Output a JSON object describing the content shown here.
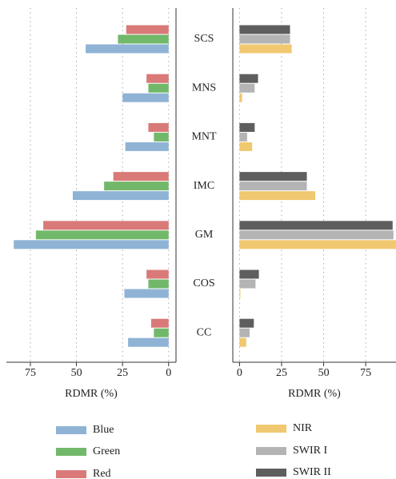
{
  "chart_data": [
    {
      "type": "bar",
      "orientation": "horizontal",
      "categories": [
        "SCS",
        "MNS",
        "MNT",
        "IMC",
        "GM",
        "COS",
        "CC"
      ],
      "xlabel": "RDMR (%)",
      "xlim": [
        88,
        -4
      ],
      "xticks": [
        75,
        50,
        25,
        0
      ],
      "grid": true,
      "series": [
        {
          "name": "Blue",
          "color": "#8fb3d5",
          "values": [
            45,
            25,
            23.5,
            52,
            84,
            24,
            22
          ]
        },
        {
          "name": "Green",
          "color": "#72b86a",
          "values": [
            27.5,
            11,
            8,
            35,
            72,
            11,
            8
          ]
        },
        {
          "name": "Red",
          "color": "#d97a78",
          "values": [
            23,
            12,
            11,
            30,
            68,
            12,
            9.5
          ]
        }
      ]
    },
    {
      "type": "bar",
      "orientation": "horizontal",
      "xlabel": "RDMR (%)",
      "xlim": [
        -4,
        93
      ],
      "xticks": [
        0,
        25,
        50,
        75
      ],
      "grid": true,
      "series": [
        {
          "name": "NIR",
          "color": "#f0c870",
          "values": [
            31,
            1.5,
            7.5,
            45,
            93,
            0.5,
            4
          ]
        },
        {
          "name": "SWIR I",
          "color": "#b4b4b4",
          "values": [
            30,
            9,
            4.5,
            40,
            91.5,
            9.5,
            6
          ]
        },
        {
          "name": "SWIR II",
          "color": "#5e5e5e",
          "values": [
            30,
            11,
            9,
            40,
            91,
            11.5,
            8.5
          ]
        }
      ]
    }
  ]
}
